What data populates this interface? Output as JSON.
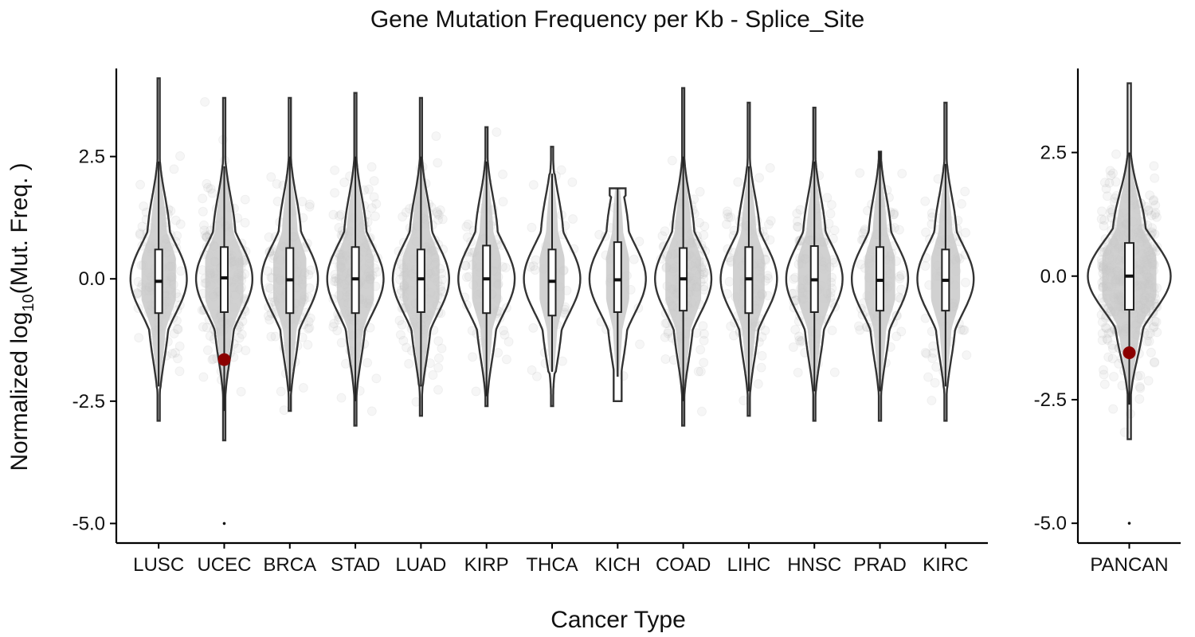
{
  "chart_data": {
    "type": "violin",
    "title": "Gene Mutation Frequency per Kb - Splice_Site",
    "xlabel": "Cancer Type",
    "ylabel_main": "Normalized log",
    "ylabel_sub": "10",
    "ylabel_tail": "(Mut. Freq. )",
    "colors": {
      "violin_outline": "#333333",
      "jitter_points": "#b5b5b5",
      "highlight_point": "#8b0000"
    },
    "panels": [
      {
        "name": "cancer-types",
        "ylim": [
          -5.4,
          4.3
        ],
        "yticks": [
          -5.0,
          -2.5,
          0.0,
          2.5
        ],
        "ytick_labels": [
          "-5.0",
          "-2.5",
          "0.0",
          "2.5"
        ],
        "categories": [
          {
            "label": "LUSC",
            "min": -2.9,
            "max": 4.1,
            "q1": -0.7,
            "median": -0.05,
            "q3": 0.6,
            "lo": -2.2,
            "hi": 2.4,
            "density": 1.0
          },
          {
            "label": "UCEC",
            "min": -3.3,
            "max": 3.7,
            "q1": -0.68,
            "median": 0.02,
            "q3": 0.65,
            "lo": -2.7,
            "hi": 2.3,
            "density": 1.3,
            "highlight": -1.65,
            "outlier": -5.0
          },
          {
            "label": "BRCA",
            "min": -2.7,
            "max": 3.7,
            "q1": -0.7,
            "median": -0.02,
            "q3": 0.63,
            "lo": -2.3,
            "hi": 2.5,
            "density": 0.9
          },
          {
            "label": "STAD",
            "min": -3.0,
            "max": 3.8,
            "q1": -0.7,
            "median": 0.0,
            "q3": 0.65,
            "lo": -2.5,
            "hi": 2.5,
            "density": 1.2
          },
          {
            "label": "LUAD",
            "min": -2.8,
            "max": 3.7,
            "q1": -0.68,
            "median": 0.0,
            "q3": 0.6,
            "lo": -2.2,
            "hi": 2.5,
            "density": 1.2
          },
          {
            "label": "KIRP",
            "min": -2.6,
            "max": 3.1,
            "q1": -0.7,
            "median": 0.0,
            "q3": 0.68,
            "lo": -2.4,
            "hi": 2.4,
            "density": 0.6
          },
          {
            "label": "THCA",
            "min": -2.6,
            "max": 2.7,
            "q1": -0.75,
            "median": -0.05,
            "q3": 0.6,
            "lo": -1.9,
            "hi": 2.15,
            "density": 0.3
          },
          {
            "label": "KICH",
            "min": -2.5,
            "max": 1.85,
            "q1": -0.68,
            "median": -0.02,
            "q3": 0.75,
            "lo": -2.0,
            "hi": 1.85,
            "density": 0.15,
            "cap_top": true,
            "cap_bottom": true
          },
          {
            "label": "COAD",
            "min": -3.0,
            "max": 3.9,
            "q1": -0.65,
            "median": 0.0,
            "q3": 0.63,
            "lo": -2.5,
            "hi": 2.5,
            "density": 1.1
          },
          {
            "label": "LIHC",
            "min": -2.8,
            "max": 3.6,
            "q1": -0.7,
            "median": 0.0,
            "q3": 0.65,
            "lo": -2.3,
            "hi": 2.3,
            "density": 0.8
          },
          {
            "label": "HNSC",
            "min": -2.9,
            "max": 3.5,
            "q1": -0.68,
            "median": -0.02,
            "q3": 0.67,
            "lo": -2.3,
            "hi": 2.4,
            "density": 0.9
          },
          {
            "label": "PRAD",
            "min": -2.9,
            "max": 2.6,
            "q1": -0.65,
            "median": -0.03,
            "q3": 0.65,
            "lo": -2.3,
            "hi": 2.6,
            "density": 0.7
          },
          {
            "label": "KIRC",
            "min": -2.9,
            "max": 3.6,
            "q1": -0.65,
            "median": -0.03,
            "q3": 0.6,
            "lo": -2.2,
            "hi": 2.35,
            "density": 0.6
          }
        ]
      },
      {
        "name": "pancan",
        "ylim": [
          -5.4,
          4.2
        ],
        "yticks": [
          -5.0,
          -2.5,
          0.0,
          2.5
        ],
        "ytick_labels": [
          "-5.0",
          "-2.5",
          "0.0",
          "2.5"
        ],
        "categories": [
          {
            "label": "PANCAN",
            "min": -3.3,
            "max": 3.9,
            "q1": -0.68,
            "median": 0.0,
            "q3": 0.67,
            "lo": -2.6,
            "hi": 2.5,
            "density": 3.0,
            "highlight": -1.55,
            "outlier": -5.0,
            "wide": true
          }
        ]
      }
    ]
  }
}
